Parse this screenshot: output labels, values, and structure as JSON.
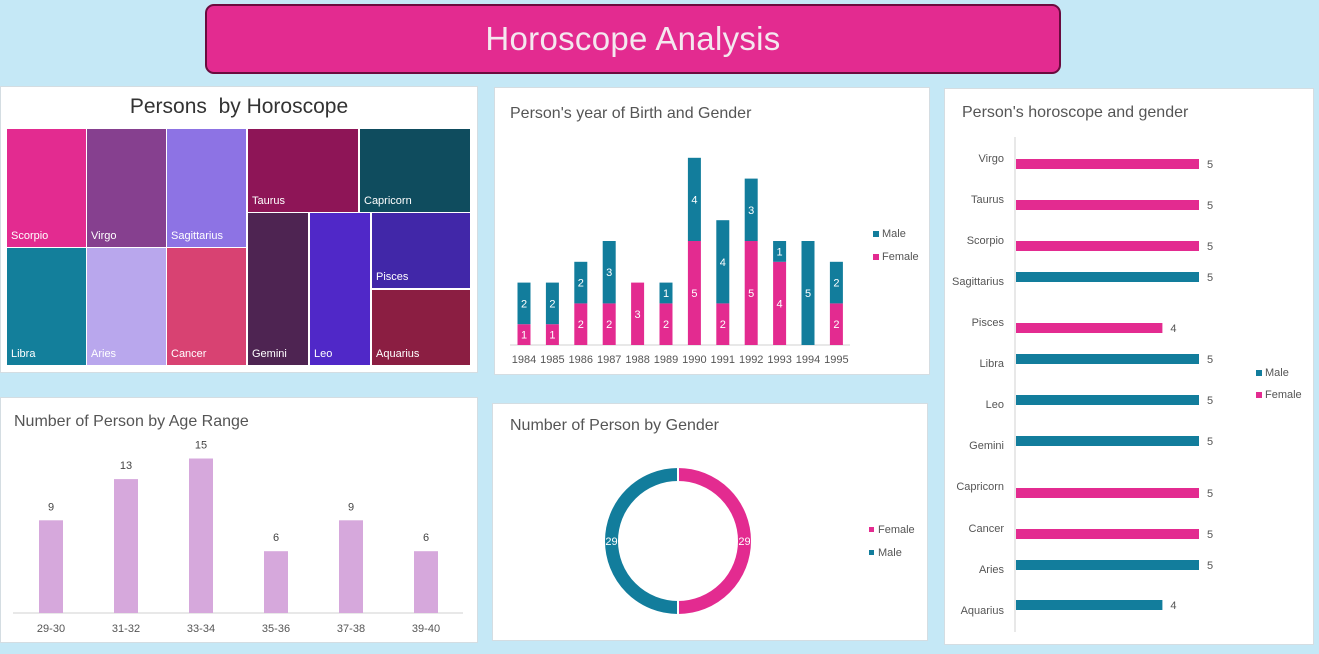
{
  "header": {
    "title": "Horoscope Analysis"
  },
  "colors": {
    "female": "#e32b90",
    "male": "#127d9c",
    "age_bar": "#d6a8dc",
    "banner": "#e32b90"
  },
  "charts": {
    "treemap": {
      "title": "Persons  by Horoscope",
      "chart_data": {
        "type": "treemap",
        "title": "Persons  by Horoscope",
        "items": [
          {
            "label": "Scorpio",
            "color": "#e32b90"
          },
          {
            "label": "Virgo",
            "color": "#86408f"
          },
          {
            "label": "Sagittarius",
            "color": "#8d73e4"
          },
          {
            "label": "Taurus",
            "color": "#8e1557"
          },
          {
            "label": "Capricorn",
            "color": "#0f4c5e"
          },
          {
            "label": "Libra",
            "color": "#137f9b"
          },
          {
            "label": "Aries",
            "color": "#b9a7ed"
          },
          {
            "label": "Cancer",
            "color": "#d84272"
          },
          {
            "label": "Gemini",
            "color": "#4e2452"
          },
          {
            "label": "Leo",
            "color": "#5028c8"
          },
          {
            "label": "Pisces",
            "color": "#4127a8"
          },
          {
            "label": "Aquarius",
            "color": "#8b1e42"
          }
        ]
      }
    },
    "birth": {
      "title": "Person's year of Birth and Gender",
      "chart_data": {
        "type": "bar",
        "stacked": true,
        "title": "Person's year of Birth and Gender",
        "categories": [
          "1984",
          "1985",
          "1986",
          "1987",
          "1988",
          "1989",
          "1990",
          "1991",
          "1992",
          "1993",
          "1994",
          "1995"
        ],
        "series": [
          {
            "name": "Female",
            "color": "#e32b90",
            "values": [
              1,
              1,
              2,
              2,
              3,
              2,
              5,
              2,
              5,
              4,
              0,
              2
            ]
          },
          {
            "name": "Male",
            "color": "#127d9c",
            "values": [
              2,
              2,
              2,
              3,
              0,
              1,
              4,
              4,
              3,
              1,
              5,
              2
            ]
          }
        ],
        "legend": [
          "Male",
          "Female"
        ],
        "legend_position": "right",
        "ylim": [
          0,
          10
        ]
      }
    },
    "horo_gender": {
      "title": "Person's horoscope and gender",
      "chart_data": {
        "type": "bar",
        "orientation": "horizontal",
        "title": "Person's horoscope and gender",
        "categories": [
          "Virgo",
          "Taurus",
          "Scorpio",
          "Sagittarius",
          "Pisces",
          "Libra",
          "Leo",
          "Gemini",
          "Capricorn",
          "Cancer",
          "Aries",
          "Aquarius"
        ],
        "values": [
          5,
          5,
          5,
          5,
          4,
          5,
          5,
          5,
          5,
          5,
          5,
          4
        ],
        "genders": [
          "Female",
          "Female",
          "Female",
          "Male",
          "Female",
          "Male",
          "Male",
          "Male",
          "Female",
          "Female",
          "Male",
          "Male"
        ],
        "series": [
          {
            "name": "Male",
            "color": "#127d9c"
          },
          {
            "name": "Female",
            "color": "#e32b90"
          }
        ],
        "legend_position": "right",
        "xlim": [
          0,
          5
        ]
      }
    },
    "age": {
      "title": "Number of Person by Age Range",
      "chart_data": {
        "type": "bar",
        "title": "Number of Person by Age Range",
        "categories": [
          "29-30",
          "31-32",
          "33-34",
          "35-36",
          "37-38",
          "39-40"
        ],
        "values": [
          9,
          13,
          15,
          6,
          9,
          6
        ],
        "ylim": [
          0,
          16
        ]
      }
    },
    "gender": {
      "title": "Number of Person by Gender",
      "chart_data": {
        "type": "pie",
        "donut": true,
        "title": "Number of Person by Gender",
        "slices": [
          {
            "label": "Female",
            "value": 29,
            "color": "#e32b90"
          },
          {
            "label": "Male",
            "value": 29,
            "color": "#127d9c"
          }
        ],
        "legend_position": "right"
      }
    }
  }
}
